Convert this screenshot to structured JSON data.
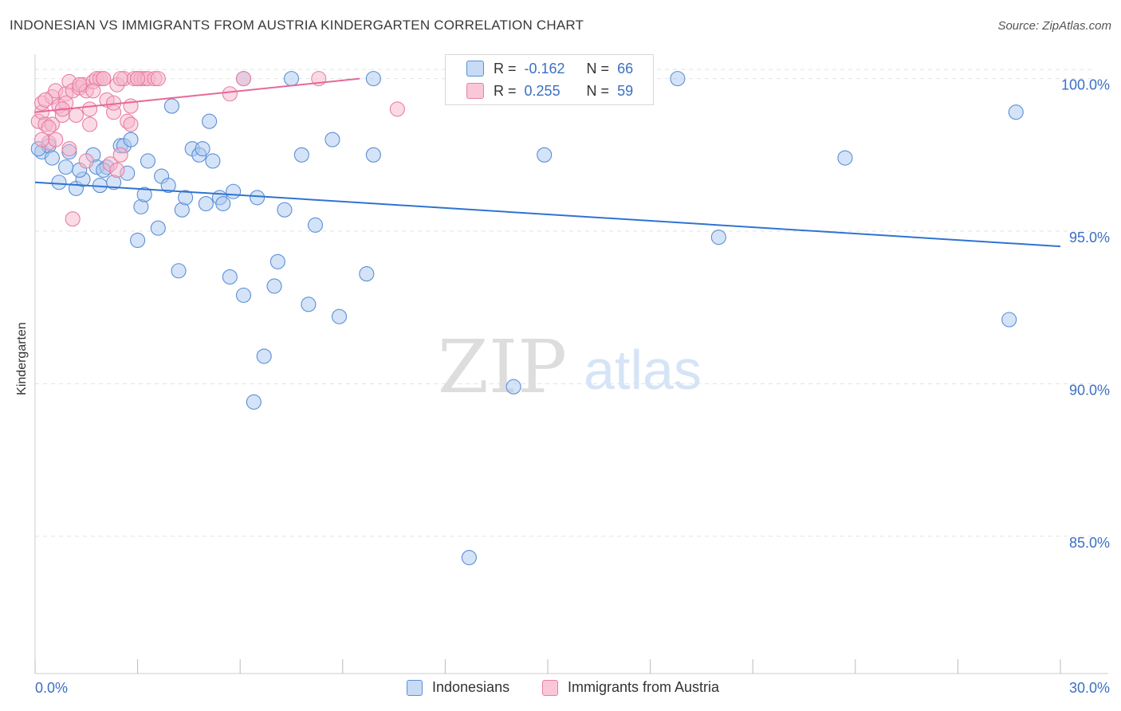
{
  "title": "INDONESIAN VS IMMIGRANTS FROM AUSTRIA KINDERGARTEN CORRELATION CHART",
  "source": "Source: ZipAtlas.com",
  "watermark": {
    "zip": "ZIP",
    "atlas": "atlas"
  },
  "legend": {
    "rows": [
      {
        "r_label": "R =",
        "r_value": "-0.162",
        "n_label": "N =",
        "n_value": "66"
      },
      {
        "r_label": "R =",
        "r_value": "0.255",
        "n_label": "N =",
        "n_value": "59"
      }
    ]
  },
  "bottom_legend": {
    "series1": "Indonesians",
    "series2": "Immigrants from Austria"
  },
  "colors": {
    "blue_fill": "#aac8f0",
    "blue_stroke": "#5b8fd6",
    "blue_line": "#2f74d0",
    "pink_fill": "#f6b6cc",
    "pink_stroke": "#e87fa3",
    "pink_line": "#e8679a",
    "axis_text": "#3b6fc4",
    "grid": "#e3e3e3"
  },
  "chart_data": {
    "type": "scatter",
    "title": "INDONESIAN VS IMMIGRANTS FROM AUSTRIA KINDERGARTEN CORRELATION CHART",
    "xlabel": "",
    "ylabel": "Kindergarten",
    "xlim": [
      0,
      30
    ],
    "ylim": [
      80.5,
      100.8
    ],
    "x_tick_labels": [
      "0.0%",
      "30.0%"
    ],
    "y_ticks": [
      85,
      90,
      95,
      100
    ],
    "y_tick_labels": [
      "85.0%",
      "90.0%",
      "95.0%",
      "100.0%"
    ],
    "series": [
      {
        "name": "Indonesians",
        "r": -0.162,
        "n": 66,
        "trend": {
          "x": [
            0,
            30
          ],
          "y": [
            96.6,
            94.5
          ]
        },
        "points": [
          [
            0.2,
            97.6
          ],
          [
            0.4,
            97.8
          ],
          [
            0.5,
            97.4
          ],
          [
            0.7,
            96.6
          ],
          [
            0.9,
            97.1
          ],
          [
            1.0,
            97.6
          ],
          [
            1.2,
            96.4
          ],
          [
            1.4,
            96.7
          ],
          [
            1.7,
            97.5
          ],
          [
            1.8,
            97.1
          ],
          [
            1.9,
            96.5
          ],
          [
            2.1,
            97.1
          ],
          [
            2.3,
            96.6
          ],
          [
            2.5,
            97.8
          ],
          [
            2.6,
            97.8
          ],
          [
            2.7,
            96.9
          ],
          [
            2.8,
            98.0
          ],
          [
            3.1,
            95.8
          ],
          [
            3.2,
            96.2
          ],
          [
            3.3,
            97.3
          ],
          [
            3.6,
            95.1
          ],
          [
            3.7,
            96.8
          ],
          [
            3.9,
            96.5
          ],
          [
            4.0,
            99.1
          ],
          [
            4.2,
            93.7
          ],
          [
            4.3,
            95.7
          ],
          [
            4.4,
            96.1
          ],
          [
            4.6,
            97.7
          ],
          [
            4.8,
            97.5
          ],
          [
            4.9,
            97.7
          ],
          [
            5.1,
            98.6
          ],
          [
            5.2,
            97.3
          ],
          [
            5.4,
            96.1
          ],
          [
            5.5,
            95.9
          ],
          [
            5.7,
            93.5
          ],
          [
            5.8,
            96.3
          ],
          [
            6.1,
            100.0
          ],
          [
            6.1,
            92.9
          ],
          [
            6.4,
            89.4
          ],
          [
            6.5,
            96.1
          ],
          [
            6.7,
            90.9
          ],
          [
            7.0,
            93.2
          ],
          [
            7.1,
            94.0
          ],
          [
            7.3,
            95.7
          ],
          [
            7.5,
            100.0
          ],
          [
            7.8,
            97.5
          ],
          [
            8.0,
            92.6
          ],
          [
            8.2,
            95.2
          ],
          [
            8.7,
            98.0
          ],
          [
            8.9,
            92.2
          ],
          [
            9.7,
            93.6
          ],
          [
            9.9,
            100.0
          ],
          [
            9.9,
            97.5
          ],
          [
            12.7,
            84.3
          ],
          [
            14.0,
            89.9
          ],
          [
            14.9,
            97.5
          ],
          [
            18.8,
            100.0
          ],
          [
            20.0,
            94.8
          ],
          [
            23.7,
            97.4
          ],
          [
            28.5,
            92.1
          ],
          [
            28.7,
            98.9
          ],
          [
            3.0,
            94.7
          ],
          [
            0.1,
            97.7
          ],
          [
            1.3,
            97.0
          ],
          [
            2.0,
            97.0
          ],
          [
            5.0,
            95.9
          ]
        ]
      },
      {
        "name": "Immigrants from Austria",
        "r": 0.255,
        "n": 59,
        "trend": {
          "x": [
            0,
            9.5
          ],
          "y": [
            98.9,
            100.0
          ]
        },
        "points": [
          [
            0.1,
            98.6
          ],
          [
            0.2,
            98.9
          ],
          [
            0.2,
            99.2
          ],
          [
            0.3,
            98.5
          ],
          [
            0.4,
            97.9
          ],
          [
            0.5,
            99.4
          ],
          [
            0.5,
            98.5
          ],
          [
            0.6,
            99.6
          ],
          [
            0.7,
            99.1
          ],
          [
            0.8,
            98.8
          ],
          [
            0.9,
            99.5
          ],
          [
            1.0,
            99.9
          ],
          [
            1.0,
            97.7
          ],
          [
            1.1,
            99.6
          ],
          [
            1.2,
            98.8
          ],
          [
            1.3,
            99.7
          ],
          [
            1.4,
            99.8
          ],
          [
            1.5,
            99.6
          ],
          [
            1.6,
            99.0
          ],
          [
            1.7,
            99.9
          ],
          [
            1.8,
            100.0
          ],
          [
            1.9,
            100.0
          ],
          [
            2.0,
            100.0
          ],
          [
            2.1,
            99.3
          ],
          [
            2.2,
            97.2
          ],
          [
            2.3,
            98.9
          ],
          [
            2.4,
            99.8
          ],
          [
            2.6,
            100.0
          ],
          [
            2.7,
            98.6
          ],
          [
            2.8,
            99.1
          ],
          [
            2.9,
            100.0
          ],
          [
            3.0,
            100.0
          ],
          [
            3.1,
            100.0
          ],
          [
            3.2,
            100.0
          ],
          [
            3.3,
            100.0
          ],
          [
            3.5,
            100.0
          ],
          [
            3.6,
            100.0
          ],
          [
            6.1,
            100.0
          ],
          [
            8.3,
            100.0
          ],
          [
            10.6,
            99.0
          ],
          [
            0.3,
            99.3
          ],
          [
            0.6,
            98.0
          ],
          [
            0.9,
            99.2
          ],
          [
            1.1,
            95.4
          ],
          [
            1.3,
            99.8
          ],
          [
            1.5,
            97.3
          ],
          [
            1.7,
            99.6
          ],
          [
            2.0,
            100.0
          ],
          [
            2.3,
            99.2
          ],
          [
            2.5,
            100.0
          ],
          [
            2.8,
            98.5
          ],
          [
            2.4,
            97.0
          ],
          [
            3.0,
            100.0
          ],
          [
            5.7,
            99.5
          ],
          [
            0.4,
            98.4
          ],
          [
            0.8,
            99.0
          ],
          [
            1.6,
            98.5
          ],
          [
            2.5,
            97.5
          ],
          [
            0.2,
            98.0
          ]
        ]
      }
    ]
  }
}
